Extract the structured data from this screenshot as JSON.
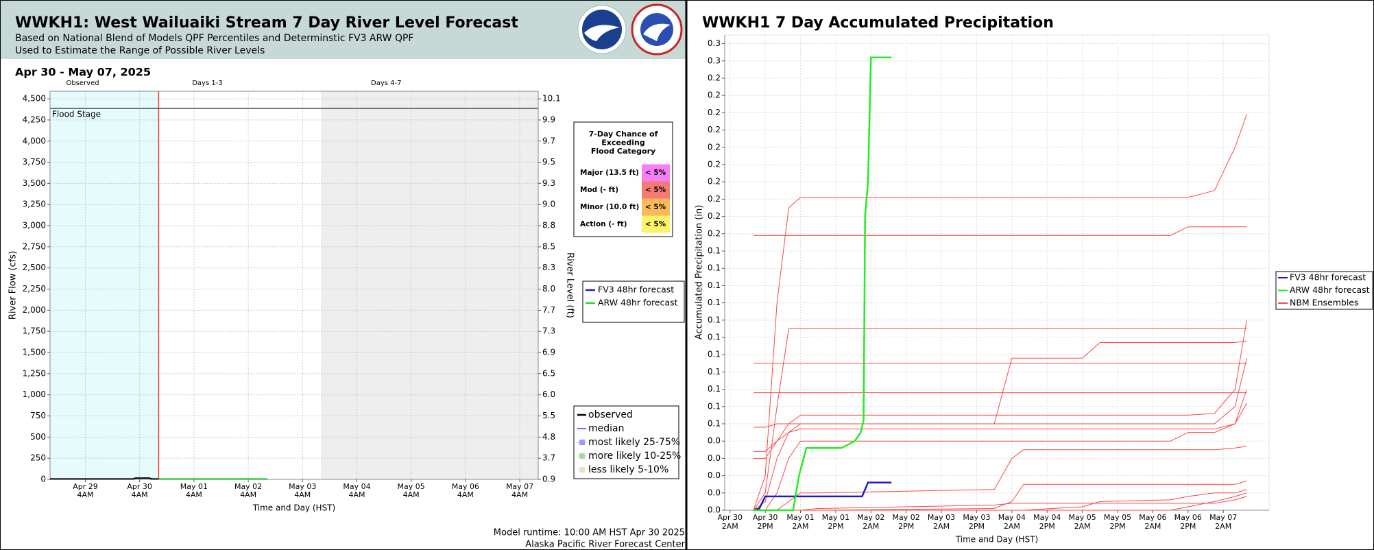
{
  "chart_data": [
    {
      "type": "line",
      "title": "WWKH1: West Wailuaiki Stream 7 Day River Level Forecast",
      "subtitle": [
        "Based on National Blend of Models QPF Percentiles and Determinstic FV3 ARW QPF",
        "Used to Estimate the Range of Possible River Levels"
      ],
      "date_range": "Apr 30 - May 07, 2025",
      "xlabel": "Time and Day (HST)",
      "ylabel": "River Flow (cfs)",
      "y2label": "River Level (ft)",
      "xlim": [
        -0.65,
        8.34
      ],
      "xticks": [
        {
          "value": 0,
          "label": [
            "Apr 29",
            "4AM"
          ]
        },
        {
          "value": 1,
          "label": [
            "Apr 30",
            "4AM"
          ]
        },
        {
          "value": 2,
          "label": [
            "May 01",
            "4AM"
          ]
        },
        {
          "value": 3,
          "label": [
            "May 02",
            "4AM"
          ]
        },
        {
          "value": 4,
          "label": [
            "May 03",
            "4AM"
          ]
        },
        {
          "value": 5,
          "label": [
            "May 04",
            "4AM"
          ]
        },
        {
          "value": 6,
          "label": [
            "May 05",
            "4AM"
          ]
        },
        {
          "value": 7,
          "label": [
            "May 06",
            "4AM"
          ]
        },
        {
          "value": 8,
          "label": [
            "May 07",
            "4AM"
          ]
        }
      ],
      "ylim": [
        0,
        4590
      ],
      "yticks": [
        0,
        250,
        500,
        750,
        {
          "value": 1000,
          "label": "1,000"
        },
        {
          "value": 1250,
          "label": "1,250"
        },
        {
          "value": 1500,
          "label": "1,500"
        },
        {
          "value": 1750,
          "label": "1,750"
        },
        {
          "value": 2000,
          "label": "2,000"
        },
        {
          "value": 2250,
          "label": "2,250"
        },
        {
          "value": 2500,
          "label": "2,500"
        },
        {
          "value": 2750,
          "label": "2,750"
        },
        {
          "value": 3000,
          "label": "3,000"
        },
        {
          "value": 3250,
          "label": "3,250"
        },
        {
          "value": 3500,
          "label": "3,500"
        },
        {
          "value": 3750,
          "label": "3,750"
        },
        {
          "value": 4000,
          "label": "4,000"
        },
        {
          "value": 4250,
          "label": "4,250"
        },
        {
          "value": 4500,
          "label": "4,500"
        }
      ],
      "y2ticks": [
        0.9,
        3.7,
        4.8,
        5.5,
        {
          "value": 6,
          "label": "6.0"
        },
        6.5,
        6.9,
        7.3,
        7.7,
        {
          "value": 8,
          "label": "8.0"
        },
        8.3,
        8.5,
        8.8,
        {
          "value": 9,
          "label": "9.0"
        },
        9.3,
        9.5,
        9.7,
        9.9,
        10.1
      ],
      "grid": true,
      "regions": [
        {
          "name": "Observed",
          "x": [
            -0.65,
            1.35
          ],
          "color": "#e6fbfb"
        },
        {
          "name": "Days 1-3",
          "x": [
            1.35,
            4.34
          ],
          "color": "#ffffff"
        },
        {
          "name": "Days 4-7",
          "x": [
            4.34,
            8.34
          ],
          "color": "#eeeeee"
        }
      ],
      "forecast_line_color": "#ff3030",
      "flood_stage": {
        "label": "Flood Stage",
        "value": 4386,
        "color": "#555555"
      },
      "series": [
        {
          "name": "observed",
          "color": "#000000",
          "legend": "lower",
          "x": [
            -0.65,
            0.88,
            0.92,
            1.18,
            1.22,
            1.35
          ],
          "values": [
            5,
            5,
            15,
            15,
            5,
            5
          ]
        },
        {
          "name": "FV3 48hr forecast",
          "color": "#1a1acc",
          "legend": "right",
          "x": [
            1.35,
            3.35
          ],
          "values": [
            4,
            4
          ]
        },
        {
          "name": "ARW 48hr forecast",
          "color": "#22dd22",
          "legend": "right",
          "x": [
            1.35,
            3.35
          ],
          "values": [
            2,
            2
          ]
        }
      ],
      "probability_bands": [
        {
          "name": "median",
          "color": "#6b6bff",
          "style": "line"
        },
        {
          "name": "most likely 25-75%",
          "color": "#9b9bff",
          "style": "box"
        },
        {
          "name": "more likely 10-25%",
          "color": "#a9d9a0",
          "style": "box"
        },
        {
          "name": "less likely 5-10%",
          "color": "#f3dcc6",
          "style": "box"
        }
      ],
      "flood_table": {
        "title": [
          "7-Day Chance of",
          "Exceeding",
          "Flood Category"
        ],
        "rows": [
          {
            "category": "Major (13.5 ft)",
            "chance": "< 5%",
            "color": "#f77ef7"
          },
          {
            "category": "Mod (- ft)",
            "chance": "< 5%",
            "color": "#f47a72"
          },
          {
            "category": "Minor (10.0 ft)",
            "chance": "< 5%",
            "color": "#fbb85c"
          },
          {
            "category": "Action (- ft)",
            "chance": "< 5%",
            "color": "#fbf36a"
          }
        ]
      },
      "footer": [
        "Model runtime: 10:00 AM HST Apr 30 2025",
        "Alaska Pacific River Forecast Center"
      ]
    },
    {
      "type": "line",
      "title": "WWKH1 7 Day Accumulated Precipitation",
      "xlabel": "Time and Day (HST)",
      "ylabel": "Accumulated Precipitation (in)",
      "xlim": [
        -1.8,
        183.6
      ],
      "xticks": [
        {
          "value": 0,
          "label": [
            "Apr 30",
            "2AM"
          ]
        },
        {
          "value": 12,
          "label": [
            "Apr 30",
            "2PM"
          ]
        },
        {
          "value": 24,
          "label": [
            "May 01",
            "2AM"
          ]
        },
        {
          "value": 36,
          "label": [
            "May 01",
            "2PM"
          ]
        },
        {
          "value": 48,
          "label": [
            "May 02",
            "2AM"
          ]
        },
        {
          "value": 60,
          "label": [
            "May 02",
            "2PM"
          ]
        },
        {
          "value": 72,
          "label": [
            "May 03",
            "2AM"
          ]
        },
        {
          "value": 84,
          "label": [
            "May 03",
            "2PM"
          ]
        },
        {
          "value": 96,
          "label": [
            "May 04",
            "2AM"
          ]
        },
        {
          "value": 108,
          "label": [
            "May 04",
            "2PM"
          ]
        },
        {
          "value": 120,
          "label": [
            "May 05",
            "2AM"
          ]
        },
        {
          "value": 132,
          "label": [
            "May 05",
            "2PM"
          ]
        },
        {
          "value": 144,
          "label": [
            "May 06",
            "2AM"
          ]
        },
        {
          "value": 156,
          "label": [
            "May 06",
            "2PM"
          ]
        },
        {
          "value": 168,
          "label": [
            "May 07",
            "2AM"
          ]
        }
      ],
      "ylim": [
        0,
        0.275
      ],
      "yticks": [
        {
          "value": 0,
          "label": "0.0"
        },
        {
          "value": 0.01,
          "label": "0.0"
        },
        {
          "value": 0.02,
          "label": "0.0"
        },
        {
          "value": 0.03,
          "label": "0.0"
        },
        {
          "value": 0.04,
          "label": "0.0"
        },
        {
          "value": 0.05,
          "label": "0.1"
        },
        {
          "value": 0.06,
          "label": "0.1"
        },
        {
          "value": 0.07,
          "label": "0.1"
        },
        {
          "value": 0.08,
          "label": "0.1"
        },
        {
          "value": 0.09,
          "label": "0.1"
        },
        {
          "value": 0.1,
          "label": "0.1"
        },
        {
          "value": 0.11,
          "label": "0.1"
        },
        {
          "value": 0.12,
          "label": "0.1"
        },
        {
          "value": 0.13,
          "label": "0.1"
        },
        {
          "value": 0.14,
          "label": "0.1"
        },
        {
          "value": 0.15,
          "label": "0.1"
        },
        {
          "value": 0.16,
          "label": "0.2"
        },
        {
          "value": 0.17,
          "label": "0.2"
        },
        {
          "value": 0.18,
          "label": "0.2"
        },
        {
          "value": 0.19,
          "label": "0.2"
        },
        {
          "value": 0.2,
          "label": "0.2"
        },
        {
          "value": 0.21,
          "label": "0.2"
        },
        {
          "value": 0.22,
          "label": "0.2"
        },
        {
          "value": 0.23,
          "label": "0.2"
        },
        {
          "value": 0.24,
          "label": "0.2"
        },
        {
          "value": 0.25,
          "label": "0.2"
        },
        {
          "value": 0.26,
          "label": "0.3"
        },
        {
          "value": 0.27,
          "label": "0.3"
        }
      ],
      "grid": true,
      "series": [
        {
          "name": "FV3 48hr forecast",
          "color": "#1a1acc",
          "x": [
            8,
            10,
            12,
            45,
            47,
            55
          ],
          "values": [
            0,
            0.001,
            0.008,
            0.008,
            0.016,
            0.016
          ]
        },
        {
          "name": "ARW 48hr forecast",
          "color": "#22ee22",
          "x": [
            8,
            21.5,
            23.5,
            26,
            38,
            42.5,
            44.5,
            45.5,
            46,
            47,
            48,
            55
          ],
          "values": [
            0,
            0,
            0.02,
            0.036,
            0.036,
            0.04,
            0.045,
            0.052,
            0.17,
            0.19,
            0.262,
            0.262
          ]
        },
        {
          "name": "NBM Ensembles",
          "color": "#ff4545",
          "x": [
            8,
            12,
            16,
            20,
            24,
            30,
            90,
            96,
            100,
            120,
            126,
            150,
            156,
            165,
            172,
            176
          ],
          "members": [
            [
              0.159,
              0.159,
              0.159,
              0.159,
              0.159,
              0.159,
              0.159,
              0.159,
              0.159,
              0.159,
              0.159,
              0.159,
              0.164,
              0.164,
              0.164,
              0.164
            ],
            [
              0,
              0.02,
              0.12,
              0.175,
              0.181,
              0.181,
              0.181,
              0.181,
              0.181,
              0.181,
              0.181,
              0.181,
              0.181,
              0.185,
              0.21,
              0.229
            ],
            [
              0,
              0.01,
              0.06,
              0.105,
              0.105,
              0.105,
              0.105,
              0.105,
              0.105,
              0.105,
              0.105,
              0.105,
              0.105,
              0.105,
              0.105,
              0.105
            ],
            [
              0.085,
              0.085,
              0.085,
              0.085,
              0.085,
              0.085,
              0.085,
              0.085,
              0.085,
              0.085,
              0.085,
              0.085,
              0.085,
              0.085,
              0.085,
              0.085
            ],
            [
              0.068,
              0.068,
              0.068,
              0.068,
              0.068,
              0.068,
              0.068,
              0.068,
              0.068,
              0.068,
              0.068,
              0.068,
              0.068,
              0.068,
              0.068,
              0.068
            ],
            [
              0,
              0.005,
              0.03,
              0.045,
              0.05,
              0.05,
              0.05,
              0.088,
              0.088,
              0.088,
              0.097,
              0.097,
              0.097,
              0.097,
              0.097,
              0.098
            ],
            [
              0.034,
              0.034,
              0.04,
              0.05,
              0.055,
              0.055,
              0.055,
              0.055,
              0.055,
              0.055,
              0.055,
              0.055,
              0.055,
              0.056,
              0.07,
              0.11
            ],
            [
              0.048,
              0.048,
              0.05,
              0.05,
              0.05,
              0.05,
              0.05,
              0.05,
              0.05,
              0.05,
              0.05,
              0.05,
              0.05,
              0.05,
              0.06,
              0.088
            ],
            [
              0,
              0,
              0.01,
              0.03,
              0.04,
              0.04,
              0.04,
              0.04,
              0.04,
              0.04,
              0.04,
              0.04,
              0.045,
              0.045,
              0.05,
              0.062
            ],
            [
              0,
              0,
              0,
              0.005,
              0.01,
              0.01,
              0.012,
              0.03,
              0.035,
              0.035,
              0.035,
              0.035,
              0.035,
              0.035,
              0.036,
              0.037
            ],
            [
              0,
              0,
              0,
              0,
              0,
              0,
              0.001,
              0.005,
              0.015,
              0.015,
              0.015,
              0.015,
              0.015,
              0.015,
              0.015,
              0.017
            ],
            [
              0,
              0,
              0,
              0,
              0,
              0,
              0,
              0,
              0,
              0.002,
              0.005,
              0.006,
              0.008,
              0.01,
              0.01,
              0.012
            ],
            [
              0.03,
              0.03,
              0.04,
              0.045,
              0.047,
              0.047,
              0.047,
              0.047,
              0.047,
              0.047,
              0.047,
              0.047,
              0.047,
              0.047,
              0.05,
              0.07
            ],
            [
              0,
              0,
              0,
              0,
              0,
              0,
              0,
              0,
              0,
              0,
              0,
              0,
              0.002,
              0.005,
              0.008,
              0.01
            ],
            [
              0,
              0,
              0,
              0,
              0,
              0.001,
              0.003,
              0.004,
              0.004,
              0.004,
              0.004,
              0.004,
              0.004,
              0.004,
              0.006,
              0.008
            ]
          ]
        }
      ]
    }
  ]
}
